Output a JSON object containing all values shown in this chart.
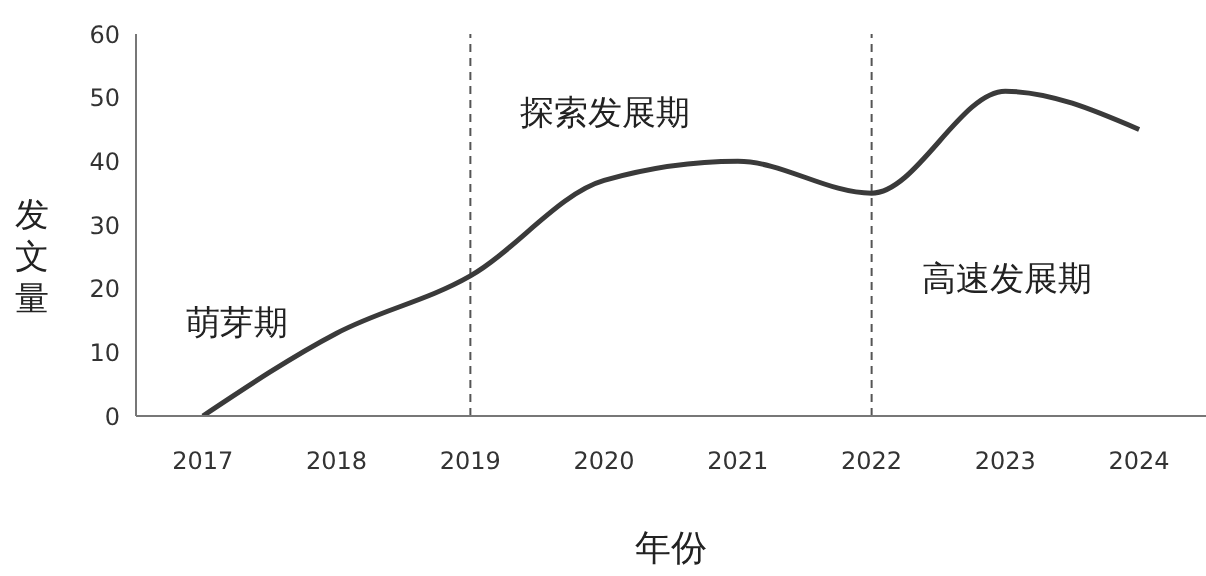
{
  "chart_data": {
    "type": "line",
    "xlabel": "年份",
    "ylabel": "发文量",
    "categories": [
      "2017",
      "2018",
      "2019",
      "2020",
      "2021",
      "2022",
      "2023",
      "2024"
    ],
    "series": [
      {
        "color": "#3a3a3a",
        "values": [
          0,
          13,
          22,
          37,
          40,
          35,
          51,
          45
        ]
      }
    ],
    "ylim": [
      0,
      60
    ],
    "yticks": [
      0,
      10,
      20,
      30,
      40,
      50,
      60
    ],
    "grid": false,
    "legend": false,
    "marker": "none",
    "line_style": "solid",
    "ref_lines": [
      {
        "axis": "x",
        "value": "2019",
        "color": "#555555",
        "line_style": "dashed"
      },
      {
        "axis": "x",
        "value": "2022",
        "color": "#555555",
        "line_style": "dashed"
      }
    ],
    "annotations": [
      "萌芽期",
      "探索发展期",
      "高速发展期"
    ]
  }
}
